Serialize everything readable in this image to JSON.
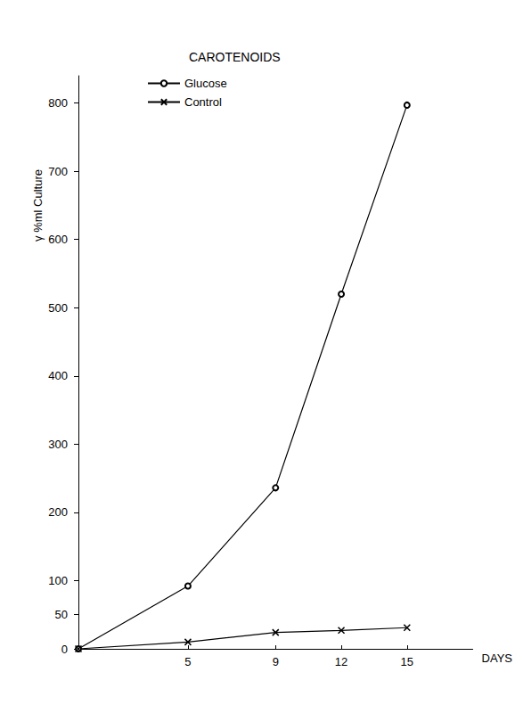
{
  "chart_data": {
    "type": "line",
    "title": "CAROTENOIDS",
    "x_label": "DAYS",
    "y_label": "γ %ml Culture",
    "series": [
      {
        "name": "Glucose",
        "color": "#000000",
        "marker": "circle",
        "x": [
          0,
          5,
          9,
          12,
          15
        ],
        "values": [
          0,
          92,
          236,
          520,
          797
        ]
      },
      {
        "name": "Control",
        "color": "#000000",
        "marker": "x",
        "x": [
          0,
          5,
          9,
          12,
          15
        ],
        "values": [
          0,
          10,
          24,
          27,
          31
        ]
      }
    ],
    "xlim": [
      0,
      18
    ],
    "xticks": [
      5,
      9,
      12,
      15
    ],
    "ylim": [
      0,
      840
    ],
    "yticks": [
      0,
      50,
      100,
      200,
      300,
      400,
      500,
      600,
      700,
      800
    ],
    "grid": false,
    "legend": "upper left"
  }
}
